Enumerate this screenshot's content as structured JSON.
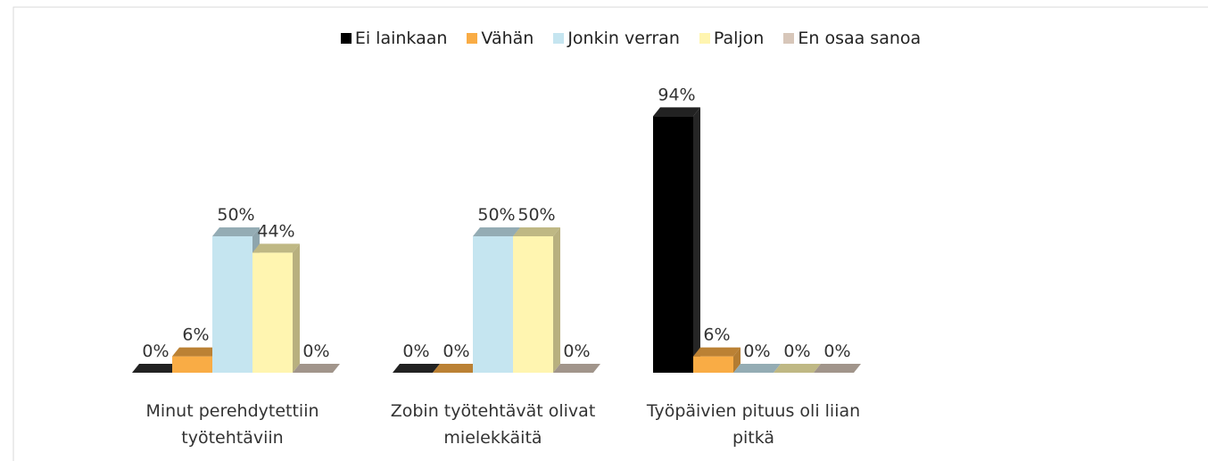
{
  "chart_data": {
    "type": "bar3d",
    "categories": [
      "Minut perehdytettiin työtehtäviin",
      "Zobin työtehtävät olivat mielekkäitä",
      "Työpäivien pituus oli liian pitkä"
    ],
    "series": [
      {
        "name": "Ei lainkaan",
        "color": "#000000",
        "values": [
          0,
          0,
          94
        ],
        "value_labels": [
          "0%",
          "0%",
          "94%"
        ]
      },
      {
        "name": "Vähän",
        "color": "#f9ac45",
        "values": [
          6,
          0,
          6
        ],
        "value_labels": [
          "6%",
          "0%",
          "6%"
        ]
      },
      {
        "name": "Jonkin verran",
        "color": "#c5e5f0",
        "values": [
          50,
          50,
          0
        ],
        "value_labels": [
          "50%",
          "50%",
          "0%"
        ]
      },
      {
        "name": "Paljon",
        "color": "#fff5b0",
        "values": [
          44,
          50,
          0
        ],
        "value_labels": [
          "44%",
          "50%",
          "0%"
        ]
      },
      {
        "name": "En osaa sanoa",
        "color": "#d7c6b9",
        "values": [
          0,
          0,
          0
        ],
        "value_labels": [
          "0%",
          "0%",
          "0%"
        ]
      }
    ],
    "legend": "top"
  }
}
